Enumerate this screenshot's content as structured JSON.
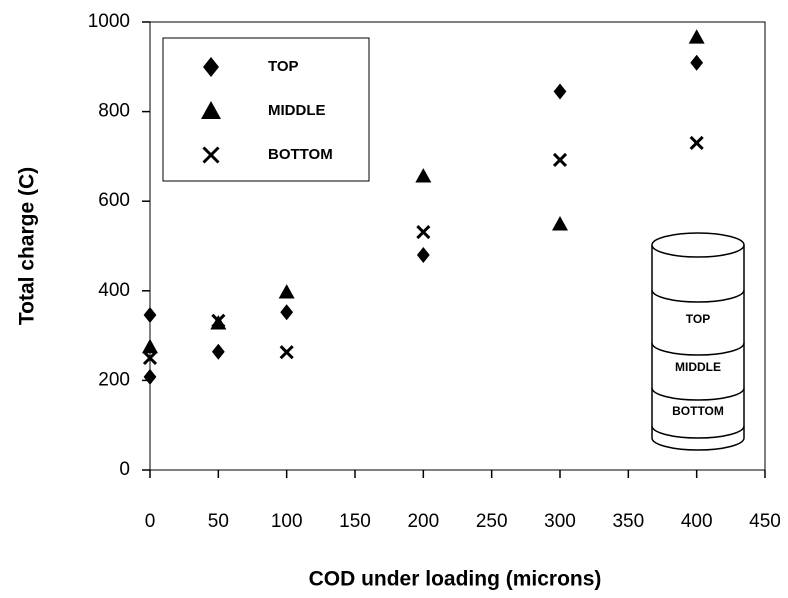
{
  "chart_data": {
    "type": "scatter",
    "x_label": "COD under loading (microns)",
    "y_label": "Total charge (C)",
    "xlim": [
      0,
      450
    ],
    "xticks": [
      0,
      50,
      100,
      150,
      200,
      250,
      300,
      350,
      400,
      450
    ],
    "ylim": [
      0,
      1000
    ],
    "yticks": [
      0,
      200,
      400,
      600,
      800,
      1000
    ],
    "series": [
      {
        "name": "TOP",
        "color": "#000000",
        "marker": "diamond",
        "x": [
          0,
          0,
          50,
          100,
          200,
          300,
          400
        ],
        "values": [
          346,
          208,
          264,
          352,
          480,
          845,
          909
        ]
      },
      {
        "name": "MIDDLE",
        "color": "#000000",
        "marker": "triangle",
        "x": [
          0,
          50,
          100,
          200,
          300,
          400
        ],
        "values": [
          275,
          328,
          397,
          656,
          549,
          966
        ]
      },
      {
        "name": "BOTTOM",
        "color": "#000000",
        "marker": "x",
        "x": [
          0,
          50,
          100,
          200,
          300,
          400
        ],
        "values": [
          250,
          333,
          263,
          531,
          692,
          730
        ]
      }
    ],
    "inset_labels": [
      "TOP",
      "MIDDLE",
      "BOTTOM"
    ]
  }
}
